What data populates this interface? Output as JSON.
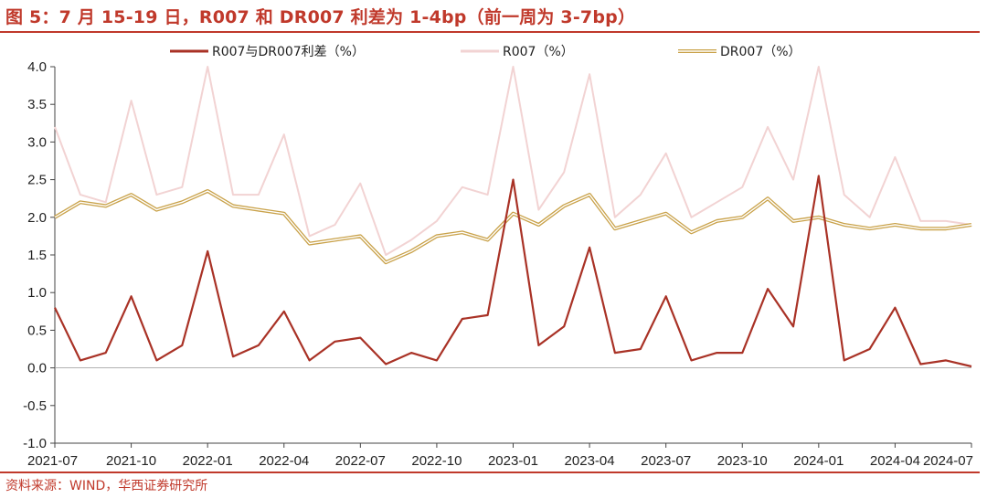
{
  "header": {
    "title": "图 5：7 月 15-19 日，R007 和 DR007 利差为 1-4bp（前一周为 3-7bp）"
  },
  "footer": {
    "source": "资料来源：WIND，华西证券研究所"
  },
  "colors": {
    "accent": "#c0392b",
    "spread": "#a93226",
    "r007": "#f2d3d3",
    "dr007": "#c9a24a"
  },
  "chart_data": {
    "type": "line",
    "title": "",
    "xlabel": "",
    "ylabel": "",
    "ylim": [
      -1.0,
      4.0
    ],
    "yticks": [
      "4.0",
      "3.5",
      "3.0",
      "2.5",
      "2.0",
      "1.5",
      "1.0",
      "0.5",
      "0.0",
      "-0.5",
      "-1.0"
    ],
    "xticks": [
      "2021-07",
      "2021-10",
      "2022-01",
      "2022-04",
      "2022-07",
      "2022-10",
      "2023-01",
      "2023-04",
      "2023-07",
      "2023-10",
      "2024-01",
      "2024-04",
      "2024-07"
    ],
    "legend_position": "top",
    "series": [
      {
        "name": "R007与DR007利差（%）",
        "style": "line",
        "color": "#a93226",
        "x": [
          "2021-07",
          "2021-08",
          "2021-09",
          "2021-10",
          "2021-11",
          "2021-12",
          "2022-01",
          "2022-02",
          "2022-03",
          "2022-04",
          "2022-05",
          "2022-06",
          "2022-07",
          "2022-08",
          "2022-09",
          "2022-10",
          "2022-11",
          "2022-12",
          "2023-01",
          "2023-02",
          "2023-03",
          "2023-04",
          "2023-05",
          "2023-06",
          "2023-07",
          "2023-08",
          "2023-09",
          "2023-10",
          "2023-11",
          "2023-12",
          "2024-01",
          "2024-02",
          "2024-03",
          "2024-04",
          "2024-05",
          "2024-06",
          "2024-07"
        ],
        "values": [
          0.8,
          0.1,
          0.2,
          0.95,
          0.1,
          0.3,
          1.55,
          0.15,
          0.3,
          0.75,
          0.1,
          0.35,
          0.4,
          0.05,
          0.2,
          0.1,
          0.65,
          0.7,
          2.5,
          0.3,
          0.55,
          1.6,
          0.2,
          0.25,
          0.95,
          0.1,
          0.2,
          0.2,
          1.05,
          0.55,
          2.55,
          0.1,
          0.25,
          0.8,
          0.05,
          0.1,
          0.02
        ]
      },
      {
        "name": "R007（%）",
        "style": "line",
        "color": "#f2d3d3",
        "x": [
          "2021-07",
          "2021-08",
          "2021-09",
          "2021-10",
          "2021-11",
          "2021-12",
          "2022-01",
          "2022-02",
          "2022-03",
          "2022-04",
          "2022-05",
          "2022-06",
          "2022-07",
          "2022-08",
          "2022-09",
          "2022-10",
          "2022-11",
          "2022-12",
          "2023-01",
          "2023-02",
          "2023-03",
          "2023-04",
          "2023-05",
          "2023-06",
          "2023-07",
          "2023-08",
          "2023-09",
          "2023-10",
          "2023-11",
          "2023-12",
          "2024-01",
          "2024-02",
          "2024-03",
          "2024-04",
          "2024-05",
          "2024-06",
          "2024-07"
        ],
        "values": [
          3.2,
          2.3,
          2.2,
          3.55,
          2.3,
          2.4,
          4.0,
          2.3,
          2.3,
          3.1,
          1.75,
          1.9,
          2.45,
          1.5,
          1.7,
          1.95,
          2.4,
          2.3,
          4.0,
          2.1,
          2.6,
          3.9,
          2.0,
          2.3,
          2.85,
          2.0,
          2.2,
          2.4,
          3.2,
          2.5,
          4.0,
          2.3,
          2.0,
          2.8,
          1.95,
          1.95,
          1.9
        ]
      },
      {
        "name": "DR007（%）",
        "style": "double-line",
        "color": "#c9a24a",
        "x": [
          "2021-07",
          "2021-08",
          "2021-09",
          "2021-10",
          "2021-11",
          "2021-12",
          "2022-01",
          "2022-02",
          "2022-03",
          "2022-04",
          "2022-05",
          "2022-06",
          "2022-07",
          "2022-08",
          "2022-09",
          "2022-10",
          "2022-11",
          "2022-12",
          "2023-01",
          "2023-02",
          "2023-03",
          "2023-04",
          "2023-05",
          "2023-06",
          "2023-07",
          "2023-08",
          "2023-09",
          "2023-10",
          "2023-11",
          "2023-12",
          "2024-01",
          "2024-02",
          "2024-03",
          "2024-04",
          "2024-05",
          "2024-06",
          "2024-07"
        ],
        "values": [
          2.0,
          2.2,
          2.15,
          2.3,
          2.1,
          2.2,
          2.35,
          2.15,
          2.1,
          2.05,
          1.65,
          1.7,
          1.75,
          1.4,
          1.55,
          1.75,
          1.8,
          1.7,
          2.05,
          1.9,
          2.15,
          2.3,
          1.85,
          1.95,
          2.05,
          1.8,
          1.95,
          2.0,
          2.25,
          1.95,
          2.0,
          1.9,
          1.85,
          1.9,
          1.85,
          1.85,
          1.9
        ]
      }
    ]
  }
}
